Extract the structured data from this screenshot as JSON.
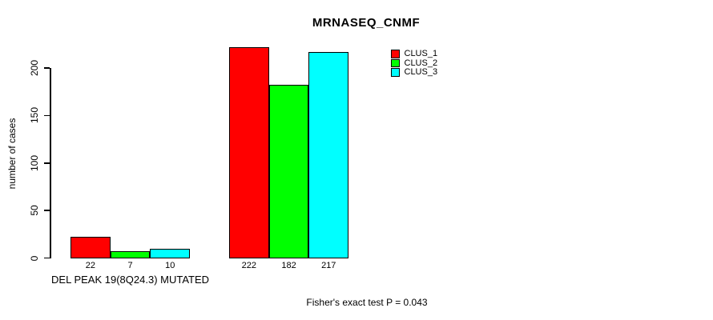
{
  "chart_data": {
    "type": "bar",
    "title": "MRNASEQ_CNMF",
    "ylabel": "number of cases",
    "xlabel": "",
    "yticks": [
      0,
      50,
      100,
      150,
      200
    ],
    "ylim": [
      0,
      222
    ],
    "grid": false,
    "legend_position": "top-right",
    "show_bar_value_labels": true,
    "categories": [
      "DEL PEAK 19(8Q24.3) MUTATED",
      ""
    ],
    "series": [
      {
        "name": "CLUS_1",
        "color": "#ff0000",
        "values": [
          22,
          222
        ]
      },
      {
        "name": "CLUS_2",
        "color": "#00ff00",
        "values": [
          7,
          182
        ]
      },
      {
        "name": "CLUS_3",
        "color": "#00ffff",
        "values": [
          10,
          217
        ]
      }
    ],
    "annotation": "Fisher's exact test P = 0.043"
  },
  "colors": {
    "background": "#ffffff",
    "axis": "#000000",
    "clus_1": "#ff0000",
    "clus_2": "#00ff00",
    "clus_3": "#00ffff"
  }
}
